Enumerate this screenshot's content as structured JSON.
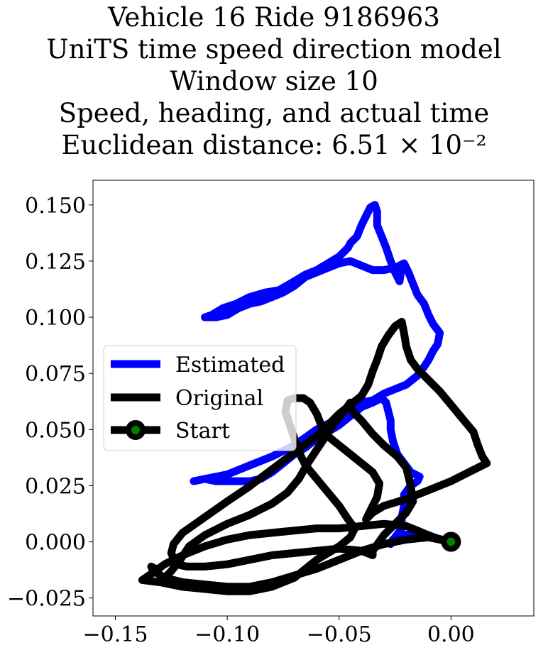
{
  "chart_data": {
    "type": "line",
    "title": [
      "Vehicle 16 Ride 9186963",
      "UniTS time speed direction model",
      "Window size 10",
      "Speed, heading, and actual time",
      "Euclidean distance: 6.51 × 10⁻²"
    ],
    "xlabel": "",
    "ylabel": "",
    "xlim": [
      -0.16,
      0.037
    ],
    "ylim": [
      -0.033,
      0.161
    ],
    "xticks": [
      -0.15,
      -0.1,
      -0.05,
      0.0
    ],
    "xtick_labels": [
      "−0.15",
      "−0.10",
      "−0.05",
      "0.00"
    ],
    "yticks": [
      -0.025,
      0.0,
      0.025,
      0.05,
      0.075,
      0.1,
      0.125,
      0.15
    ],
    "ytick_labels": [
      "−0.025",
      "0.000",
      "0.025",
      "0.050",
      "0.075",
      "0.100",
      "0.125",
      "0.150"
    ],
    "grid": false,
    "legend_position": "center-left",
    "series": [
      {
        "name": "Estimated",
        "color": "#0000ff",
        "points": [
          [
            0.0,
            0.0
          ],
          [
            -0.005,
            0.001
          ],
          [
            -0.01,
            0.003
          ],
          [
            -0.015,
            0.004
          ],
          [
            -0.021,
            0.003
          ],
          [
            -0.026,
            0.001
          ],
          [
            -0.027,
            -0.001
          ],
          [
            -0.025,
            0.002
          ],
          [
            -0.022,
            0.006
          ],
          [
            -0.022,
            0.011
          ],
          [
            -0.021,
            0.016
          ],
          [
            -0.021,
            0.021
          ],
          [
            -0.018,
            0.025
          ],
          [
            -0.015,
            0.027
          ],
          [
            -0.014,
            0.029
          ],
          [
            -0.018,
            0.031
          ],
          [
            -0.021,
            0.035
          ],
          [
            -0.024,
            0.039
          ],
          [
            -0.026,
            0.045
          ],
          [
            -0.027,
            0.05
          ],
          [
            -0.027,
            0.054
          ],
          [
            -0.028,
            0.058
          ],
          [
            -0.029,
            0.062
          ],
          [
            -0.031,
            0.064
          ],
          [
            -0.035,
            0.062
          ],
          [
            -0.04,
            0.06
          ],
          [
            -0.045,
            0.056
          ],
          [
            -0.05,
            0.052
          ],
          [
            -0.055,
            0.049
          ],
          [
            -0.06,
            0.046
          ],
          [
            -0.065,
            0.042
          ],
          [
            -0.07,
            0.039
          ],
          [
            -0.075,
            0.035
          ],
          [
            -0.08,
            0.031
          ],
          [
            -0.085,
            0.028
          ],
          [
            -0.09,
            0.027
          ],
          [
            -0.095,
            0.027
          ],
          [
            -0.1,
            0.027
          ],
          [
            -0.105,
            0.027
          ],
          [
            -0.11,
            0.028
          ],
          [
            -0.115,
            0.027
          ],
          [
            -0.11,
            0.028
          ],
          [
            -0.1,
            0.03
          ],
          [
            -0.09,
            0.034
          ],
          [
            -0.08,
            0.038
          ],
          [
            -0.07,
            0.043
          ],
          [
            -0.06,
            0.05
          ],
          [
            -0.05,
            0.055
          ],
          [
            -0.045,
            0.06
          ],
          [
            -0.04,
            0.062
          ],
          [
            -0.035,
            0.063
          ],
          [
            -0.03,
            0.066
          ],
          [
            -0.025,
            0.068
          ],
          [
            -0.02,
            0.07
          ],
          [
            -0.015,
            0.074
          ],
          [
            -0.012,
            0.078
          ],
          [
            -0.01,
            0.081
          ],
          [
            -0.008,
            0.085
          ],
          [
            -0.006,
            0.088
          ],
          [
            -0.005,
            0.093
          ],
          [
            -0.008,
            0.097
          ],
          [
            -0.01,
            0.101
          ],
          [
            -0.012,
            0.106
          ],
          [
            -0.015,
            0.11
          ],
          [
            -0.017,
            0.115
          ],
          [
            -0.019,
            0.12
          ],
          [
            -0.021,
            0.124
          ],
          [
            -0.025,
            0.122
          ],
          [
            -0.03,
            0.121
          ],
          [
            -0.035,
            0.121
          ],
          [
            -0.04,
            0.123
          ],
          [
            -0.045,
            0.125
          ],
          [
            -0.05,
            0.124
          ],
          [
            -0.055,
            0.122
          ],
          [
            -0.06,
            0.12
          ],
          [
            -0.065,
            0.118
          ],
          [
            -0.07,
            0.114
          ],
          [
            -0.075,
            0.111
          ],
          [
            -0.08,
            0.109
          ],
          [
            -0.085,
            0.107
          ],
          [
            -0.09,
            0.106
          ],
          [
            -0.095,
            0.104
          ],
          [
            -0.1,
            0.101
          ],
          [
            -0.105,
            0.1
          ],
          [
            -0.11,
            0.1
          ],
          [
            -0.107,
            0.101
          ],
          [
            -0.102,
            0.104
          ],
          [
            -0.096,
            0.106
          ],
          [
            -0.09,
            0.109
          ],
          [
            -0.083,
            0.111
          ],
          [
            -0.077,
            0.112
          ],
          [
            -0.07,
            0.116
          ],
          [
            -0.065,
            0.119
          ],
          [
            -0.06,
            0.121
          ],
          [
            -0.055,
            0.124
          ],
          [
            -0.05,
            0.127
          ],
          [
            -0.046,
            0.131
          ],
          [
            -0.045,
            0.133
          ],
          [
            -0.042,
            0.136
          ],
          [
            -0.04,
            0.141
          ],
          [
            -0.038,
            0.145
          ],
          [
            -0.036,
            0.149
          ],
          [
            -0.034,
            0.15
          ],
          [
            -0.033,
            0.147
          ],
          [
            -0.033,
            0.141
          ],
          [
            -0.031,
            0.136
          ],
          [
            -0.029,
            0.131
          ],
          [
            -0.027,
            0.125
          ],
          [
            -0.025,
            0.12
          ],
          [
            -0.023,
            0.116
          ],
          [
            -0.022,
            0.123
          ]
        ]
      },
      {
        "name": "Original",
        "color": "#000000",
        "points": [
          [
            0.0,
            0.0
          ],
          [
            -0.008,
            0.002
          ],
          [
            -0.015,
            0.005
          ],
          [
            -0.02,
            0.007
          ],
          [
            -0.03,
            0.008
          ],
          [
            -0.04,
            0.007
          ],
          [
            -0.05,
            0.006
          ],
          [
            -0.06,
            0.006
          ],
          [
            -0.07,
            0.005
          ],
          [
            -0.08,
            0.004
          ],
          [
            -0.09,
            0.003
          ],
          [
            -0.1,
            0.001
          ],
          [
            -0.11,
            -0.002
          ],
          [
            -0.12,
            -0.006
          ],
          [
            -0.128,
            -0.01
          ],
          [
            -0.135,
            -0.015
          ],
          [
            -0.138,
            -0.017
          ],
          [
            -0.13,
            -0.018
          ],
          [
            -0.12,
            -0.02
          ],
          [
            -0.11,
            -0.021
          ],
          [
            -0.1,
            -0.022
          ],
          [
            -0.09,
            -0.022
          ],
          [
            -0.08,
            -0.02
          ],
          [
            -0.07,
            -0.016
          ],
          [
            -0.065,
            -0.012
          ],
          [
            -0.06,
            -0.008
          ],
          [
            -0.055,
            -0.005
          ],
          [
            -0.05,
            -0.002
          ],
          [
            -0.045,
            0.002
          ],
          [
            -0.043,
            0.006
          ],
          [
            -0.046,
            0.01
          ],
          [
            -0.05,
            0.016
          ],
          [
            -0.055,
            0.022
          ],
          [
            -0.06,
            0.028
          ],
          [
            -0.065,
            0.034
          ],
          [
            -0.068,
            0.04
          ],
          [
            -0.07,
            0.046
          ],
          [
            -0.072,
            0.052
          ],
          [
            -0.074,
            0.058
          ],
          [
            -0.073,
            0.063
          ],
          [
            -0.07,
            0.064
          ],
          [
            -0.066,
            0.064
          ],
          [
            -0.063,
            0.062
          ],
          [
            -0.06,
            0.057
          ],
          [
            -0.058,
            0.052
          ],
          [
            -0.055,
            0.047
          ],
          [
            -0.05,
            0.043
          ],
          [
            -0.045,
            0.039
          ],
          [
            -0.04,
            0.035
          ],
          [
            -0.035,
            0.031
          ],
          [
            -0.032,
            0.026
          ],
          [
            -0.033,
            0.02
          ],
          [
            -0.036,
            0.014
          ],
          [
            -0.038,
            0.01
          ],
          [
            -0.035,
            0.013
          ],
          [
            -0.03,
            0.016
          ],
          [
            -0.02,
            0.019
          ],
          [
            -0.01,
            0.023
          ],
          [
            0.0,
            0.027
          ],
          [
            0.008,
            0.031
          ],
          [
            0.014,
            0.034
          ],
          [
            0.016,
            0.035
          ],
          [
            0.014,
            0.038
          ],
          [
            0.012,
            0.043
          ],
          [
            0.01,
            0.049
          ],
          [
            0.005,
            0.055
          ],
          [
            0.0,
            0.061
          ],
          [
            -0.005,
            0.067
          ],
          [
            -0.01,
            0.072
          ],
          [
            -0.015,
            0.077
          ],
          [
            -0.018,
            0.081
          ],
          [
            -0.02,
            0.087
          ],
          [
            -0.021,
            0.093
          ],
          [
            -0.022,
            0.098
          ],
          [
            -0.025,
            0.096
          ],
          [
            -0.028,
            0.092
          ],
          [
            -0.031,
            0.087
          ],
          [
            -0.033,
            0.081
          ],
          [
            -0.035,
            0.076
          ],
          [
            -0.037,
            0.07
          ],
          [
            -0.04,
            0.065
          ],
          [
            -0.045,
            0.061
          ],
          [
            -0.05,
            0.057
          ],
          [
            -0.055,
            0.052
          ],
          [
            -0.06,
            0.047
          ],
          [
            -0.067,
            0.042
          ],
          [
            -0.075,
            0.036
          ],
          [
            -0.083,
            0.03
          ],
          [
            -0.091,
            0.024
          ],
          [
            -0.1,
            0.018
          ],
          [
            -0.11,
            0.011
          ],
          [
            -0.12,
            0.004
          ],
          [
            -0.124,
            -0.001
          ],
          [
            -0.125,
            -0.005
          ],
          [
            -0.123,
            -0.01
          ],
          [
            -0.118,
            -0.011
          ],
          [
            -0.11,
            -0.011
          ],
          [
            -0.1,
            -0.01
          ],
          [
            -0.09,
            -0.008
          ],
          [
            -0.08,
            -0.006
          ],
          [
            -0.07,
            -0.005
          ],
          [
            -0.06,
            -0.004
          ],
          [
            -0.05,
            -0.003
          ],
          [
            -0.04,
            -0.004
          ],
          [
            -0.035,
            -0.006
          ],
          [
            -0.035,
            -0.004
          ],
          [
            -0.03,
            0.003
          ],
          [
            -0.025,
            0.008
          ],
          [
            -0.02,
            0.013
          ],
          [
            -0.017,
            0.018
          ],
          [
            -0.018,
            0.025
          ],
          [
            -0.02,
            0.033
          ],
          [
            -0.024,
            0.038
          ],
          [
            -0.03,
            0.043
          ],
          [
            -0.035,
            0.048
          ],
          [
            -0.04,
            0.054
          ],
          [
            -0.044,
            0.058
          ],
          [
            -0.045,
            0.062
          ],
          [
            -0.048,
            0.058
          ],
          [
            -0.052,
            0.053
          ],
          [
            -0.056,
            0.047
          ],
          [
            -0.06,
            0.041
          ],
          [
            -0.064,
            0.035
          ],
          [
            -0.068,
            0.028
          ],
          [
            -0.073,
            0.022
          ],
          [
            -0.08,
            0.017
          ],
          [
            -0.09,
            0.012
          ],
          [
            -0.1,
            0.008
          ],
          [
            -0.11,
            0.003
          ],
          [
            -0.117,
            -0.002
          ],
          [
            -0.121,
            -0.008
          ],
          [
            -0.125,
            -0.013
          ],
          [
            -0.128,
            -0.016
          ],
          [
            -0.13,
            -0.015
          ],
          [
            -0.132,
            -0.012
          ],
          [
            -0.134,
            -0.011
          ],
          [
            -0.133,
            -0.013
          ],
          [
            -0.128,
            -0.016
          ],
          [
            -0.12,
            -0.018
          ],
          [
            -0.11,
            -0.019
          ],
          [
            -0.1,
            -0.02
          ],
          [
            -0.09,
            -0.02
          ],
          [
            -0.08,
            -0.018
          ],
          [
            -0.07,
            -0.015
          ],
          [
            -0.06,
            -0.012
          ],
          [
            -0.05,
            -0.008
          ],
          [
            -0.04,
            -0.004
          ],
          [
            -0.03,
            -0.001
          ],
          [
            -0.02,
            0.001
          ],
          [
            -0.01,
            0.002
          ],
          [
            0.0,
            0.0
          ]
        ]
      }
    ],
    "markers": [
      {
        "name": "Start",
        "x": 0.0,
        "y": 0.0,
        "face_color": "#008000",
        "edge_color": "#000000"
      }
    ],
    "legend": [
      "Estimated",
      "Original",
      "Start"
    ]
  }
}
